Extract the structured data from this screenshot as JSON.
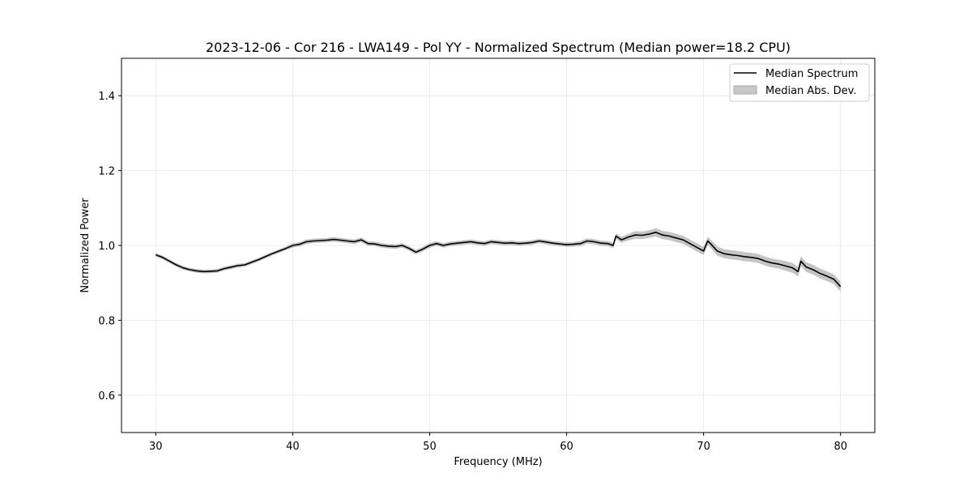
{
  "chart_data": {
    "type": "line",
    "title": "2023-12-06 - Cor 216 - LWA149 - Pol YY - Normalized Spectrum (Median power=18.2 CPU)",
    "xlabel": "Frequency (MHz)",
    "ylabel": "Normalized Power",
    "xlim": [
      27.5,
      82.5
    ],
    "ylim": [
      0.5,
      1.5
    ],
    "xticks": [
      30,
      40,
      50,
      60,
      70,
      80
    ],
    "yticks": [
      0.6,
      0.8,
      1.0,
      1.2,
      1.4
    ],
    "grid": true,
    "legend_position": "top-right",
    "legend": [
      "Median Spectrum",
      "Median Abs. Dev."
    ],
    "colors": {
      "line": "#000000",
      "band": "#b0b0b0",
      "grid": "#e6e6e6"
    },
    "series": [
      {
        "name": "Median Spectrum",
        "x": [
          30,
          30.5,
          31,
          31.5,
          32,
          32.5,
          33,
          33.5,
          34,
          34.5,
          35,
          35.5,
          36,
          36.5,
          37,
          37.5,
          38,
          38.5,
          39,
          39.5,
          40,
          40.5,
          41,
          41.5,
          42,
          42.5,
          43,
          43.5,
          44,
          44.5,
          45,
          45.5,
          46,
          46.5,
          47,
          47.5,
          48,
          48.5,
          49,
          49.5,
          50,
          50.5,
          51,
          51.5,
          52,
          52.5,
          53,
          53.5,
          54,
          54.5,
          55,
          55.5,
          56,
          56.5,
          57,
          57.5,
          58,
          58.5,
          59,
          59.5,
          60,
          60.5,
          61,
          61.5,
          62,
          62.5,
          63,
          63.4,
          63.6,
          64,
          64.5,
          65,
          65.5,
          66,
          66.5,
          67,
          67.5,
          68,
          68.5,
          69,
          69.5,
          70,
          70.3,
          70.5,
          71,
          71.5,
          72,
          72.5,
          73,
          73.5,
          74,
          74.5,
          75,
          75.5,
          76,
          76.5,
          76.9,
          77.1,
          77.5,
          78,
          78.5,
          79,
          79.5,
          80
        ],
        "values": [
          0.975,
          0.968,
          0.958,
          0.948,
          0.94,
          0.935,
          0.932,
          0.93,
          0.931,
          0.932,
          0.938,
          0.942,
          0.946,
          0.948,
          0.955,
          0.962,
          0.97,
          0.978,
          0.985,
          0.992,
          1.0,
          1.003,
          1.01,
          1.012,
          1.013,
          1.014,
          1.016,
          1.014,
          1.012,
          1.01,
          1.015,
          1.005,
          1.004,
          1.0,
          0.998,
          0.997,
          1.0,
          0.992,
          0.982,
          0.99,
          1.0,
          1.005,
          1.0,
          1.004,
          1.006,
          1.008,
          1.01,
          1.007,
          1.005,
          1.01,
          1.008,
          1.006,
          1.007,
          1.005,
          1.006,
          1.008,
          1.012,
          1.009,
          1.006,
          1.004,
          1.002,
          1.003,
          1.005,
          1.012,
          1.01,
          1.006,
          1.005,
          1.0,
          1.025,
          1.015,
          1.022,
          1.028,
          1.027,
          1.03,
          1.035,
          1.028,
          1.025,
          1.02,
          1.015,
          1.005,
          0.995,
          0.985,
          1.012,
          1.005,
          0.985,
          0.978,
          0.975,
          0.973,
          0.97,
          0.968,
          0.965,
          0.958,
          0.953,
          0.95,
          0.945,
          0.94,
          0.93,
          0.958,
          0.942,
          0.935,
          0.925,
          0.918,
          0.91,
          0.89
        ],
        "mad": [
          0.005,
          0.005,
          0.005,
          0.005,
          0.005,
          0.005,
          0.005,
          0.005,
          0.005,
          0.005,
          0.005,
          0.005,
          0.005,
          0.005,
          0.005,
          0.005,
          0.005,
          0.005,
          0.005,
          0.005,
          0.006,
          0.006,
          0.006,
          0.006,
          0.006,
          0.006,
          0.006,
          0.006,
          0.006,
          0.006,
          0.006,
          0.006,
          0.006,
          0.006,
          0.006,
          0.006,
          0.006,
          0.006,
          0.006,
          0.006,
          0.006,
          0.006,
          0.006,
          0.006,
          0.006,
          0.006,
          0.006,
          0.006,
          0.006,
          0.006,
          0.006,
          0.006,
          0.006,
          0.006,
          0.006,
          0.006,
          0.006,
          0.006,
          0.006,
          0.006,
          0.006,
          0.006,
          0.007,
          0.007,
          0.007,
          0.007,
          0.007,
          0.007,
          0.008,
          0.008,
          0.009,
          0.01,
          0.01,
          0.01,
          0.011,
          0.011,
          0.011,
          0.011,
          0.011,
          0.011,
          0.011,
          0.011,
          0.011,
          0.011,
          0.012,
          0.012,
          0.012,
          0.012,
          0.012,
          0.012,
          0.012,
          0.012,
          0.012,
          0.012,
          0.013,
          0.013,
          0.013,
          0.013,
          0.013,
          0.013,
          0.013,
          0.013,
          0.013,
          0.014
        ]
      }
    ]
  }
}
